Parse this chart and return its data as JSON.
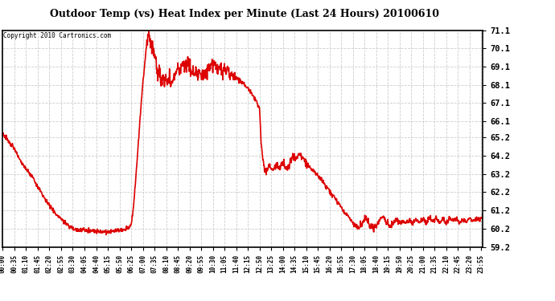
{
  "title": "Outdoor Temp (vs) Heat Index per Minute (Last 24 Hours) 20100610",
  "copyright": "Copyright 2010 Cartronics.com",
  "line_color": "#dd0000",
  "background_color": "#ffffff",
  "grid_color": "#cccccc",
  "yticks": [
    59.2,
    60.2,
    61.2,
    62.2,
    63.2,
    64.2,
    65.2,
    66.1,
    67.1,
    68.1,
    69.1,
    70.1,
    71.1
  ],
  "ylim": [
    59.2,
    71.1
  ],
  "xtick_labels": [
    "00:00",
    "00:35",
    "01:10",
    "01:45",
    "02:20",
    "02:55",
    "03:30",
    "04:05",
    "04:40",
    "05:15",
    "05:50",
    "06:25",
    "07:00",
    "07:35",
    "08:10",
    "08:45",
    "09:20",
    "09:55",
    "10:30",
    "11:05",
    "11:40",
    "12:15",
    "12:50",
    "13:25",
    "14:00",
    "14:35",
    "15:10",
    "15:45",
    "16:20",
    "16:55",
    "17:30",
    "18:05",
    "18:40",
    "19:15",
    "19:50",
    "20:25",
    "21:00",
    "21:35",
    "22:10",
    "22:45",
    "23:20",
    "23:55"
  ],
  "key_points": [
    [
      0,
      65.4
    ],
    [
      10,
      65.2
    ],
    [
      20,
      64.9
    ],
    [
      35,
      64.6
    ],
    [
      50,
      64.0
    ],
    [
      70,
      63.5
    ],
    [
      90,
      63.0
    ],
    [
      105,
      62.5
    ],
    [
      120,
      62.0
    ],
    [
      140,
      61.5
    ],
    [
      160,
      61.0
    ],
    [
      175,
      60.7
    ],
    [
      195,
      60.4
    ],
    [
      210,
      60.2
    ],
    [
      230,
      60.1
    ],
    [
      245,
      60.1
    ],
    [
      260,
      60.1
    ],
    [
      280,
      60.05
    ],
    [
      300,
      60.05
    ],
    [
      315,
      60.05
    ],
    [
      330,
      60.05
    ],
    [
      350,
      60.1
    ],
    [
      360,
      60.1
    ],
    [
      370,
      60.2
    ],
    [
      380,
      60.3
    ],
    [
      385,
      60.5
    ],
    [
      390,
      61.0
    ],
    [
      395,
      62.0
    ],
    [
      400,
      63.2
    ],
    [
      405,
      64.5
    ],
    [
      410,
      65.8
    ],
    [
      415,
      67.0
    ],
    [
      418,
      67.8
    ],
    [
      421,
      68.3
    ],
    [
      424,
      68.9
    ],
    [
      427,
      69.5
    ],
    [
      430,
      70.0
    ],
    [
      433,
      70.5
    ],
    [
      436,
      70.8
    ],
    [
      439,
      71.0
    ],
    [
      441,
      70.6
    ],
    [
      443,
      70.2
    ],
    [
      445,
      70.5
    ],
    [
      447,
      70.0
    ],
    [
      449,
      70.3
    ],
    [
      451,
      69.8
    ],
    [
      453,
      70.0
    ],
    [
      455,
      69.5
    ],
    [
      458,
      69.7
    ],
    [
      462,
      69.0
    ],
    [
      465,
      68.6
    ],
    [
      470,
      68.8
    ],
    [
      475,
      68.3
    ],
    [
      480,
      68.6
    ],
    [
      485,
      68.2
    ],
    [
      490,
      68.5
    ],
    [
      495,
      68.1
    ],
    [
      500,
      68.4
    ],
    [
      505,
      68.0
    ],
    [
      510,
      68.3
    ],
    [
      515,
      68.7
    ],
    [
      520,
      68.9
    ],
    [
      525,
      69.1
    ],
    [
      530,
      68.8
    ],
    [
      535,
      69.2
    ],
    [
      540,
      69.4
    ],
    [
      545,
      69.1
    ],
    [
      548,
      69.4
    ],
    [
      551,
      69.1
    ],
    [
      555,
      69.3
    ],
    [
      560,
      69.0
    ],
    [
      565,
      68.8
    ],
    [
      570,
      68.9
    ],
    [
      575,
      68.7
    ],
    [
      580,
      68.8
    ],
    [
      585,
      68.6
    ],
    [
      590,
      68.8
    ],
    [
      595,
      68.5
    ],
    [
      600,
      68.7
    ],
    [
      605,
      68.5
    ],
    [
      610,
      68.7
    ],
    [
      615,
      68.9
    ],
    [
      620,
      69.1
    ],
    [
      625,
      69.3
    ],
    [
      630,
      69.1
    ],
    [
      635,
      69.3
    ],
    [
      640,
      69.0
    ],
    [
      645,
      69.2
    ],
    [
      650,
      68.9
    ],
    [
      655,
      69.1
    ],
    [
      660,
      68.8
    ],
    [
      665,
      69.0
    ],
    [
      670,
      68.7
    ],
    [
      675,
      68.9
    ],
    [
      680,
      68.6
    ],
    [
      685,
      68.8
    ],
    [
      690,
      68.5
    ],
    [
      695,
      68.7
    ],
    [
      700,
      68.5
    ],
    [
      710,
      68.3
    ],
    [
      720,
      68.2
    ],
    [
      730,
      68.0
    ],
    [
      740,
      67.8
    ],
    [
      750,
      67.5
    ],
    [
      760,
      67.2
    ],
    [
      770,
      66.8
    ],
    [
      775,
      65.0
    ],
    [
      780,
      64.0
    ],
    [
      785,
      63.5
    ],
    [
      790,
      63.3
    ],
    [
      800,
      63.6
    ],
    [
      810,
      63.4
    ],
    [
      820,
      63.7
    ],
    [
      830,
      63.5
    ],
    [
      840,
      63.8
    ],
    [
      850,
      63.5
    ],
    [
      860,
      63.7
    ],
    [
      870,
      64.2
    ],
    [
      880,
      64.0
    ],
    [
      890,
      64.3
    ],
    [
      900,
      64.1
    ],
    [
      910,
      63.8
    ],
    [
      920,
      63.6
    ],
    [
      930,
      63.4
    ],
    [
      940,
      63.2
    ],
    [
      950,
      63.0
    ],
    [
      960,
      62.8
    ],
    [
      970,
      62.5
    ],
    [
      980,
      62.3
    ],
    [
      990,
      62.0
    ],
    [
      1000,
      61.8
    ],
    [
      1010,
      61.5
    ],
    [
      1020,
      61.2
    ],
    [
      1030,
      61.0
    ],
    [
      1040,
      60.8
    ],
    [
      1050,
      60.5
    ],
    [
      1060,
      60.3
    ],
    [
      1070,
      60.2
    ],
    [
      1080,
      60.5
    ],
    [
      1090,
      60.8
    ],
    [
      1100,
      60.4
    ],
    [
      1110,
      60.2
    ],
    [
      1120,
      60.3
    ],
    [
      1130,
      60.6
    ],
    [
      1140,
      60.9
    ],
    [
      1150,
      60.5
    ],
    [
      1160,
      60.3
    ],
    [
      1170,
      60.5
    ],
    [
      1180,
      60.7
    ],
    [
      1190,
      60.5
    ],
    [
      1200,
      60.6
    ],
    [
      1210,
      60.5
    ],
    [
      1220,
      60.7
    ],
    [
      1230,
      60.5
    ],
    [
      1240,
      60.7
    ],
    [
      1250,
      60.5
    ],
    [
      1260,
      60.7
    ],
    [
      1270,
      60.5
    ],
    [
      1280,
      60.8
    ],
    [
      1290,
      60.6
    ],
    [
      1300,
      60.8
    ],
    [
      1310,
      60.5
    ],
    [
      1320,
      60.7
    ],
    [
      1330,
      60.5
    ],
    [
      1340,
      60.8
    ],
    [
      1350,
      60.6
    ],
    [
      1360,
      60.8
    ],
    [
      1370,
      60.5
    ],
    [
      1380,
      60.7
    ],
    [
      1390,
      60.5
    ],
    [
      1400,
      60.8
    ],
    [
      1410,
      60.6
    ],
    [
      1420,
      60.8
    ],
    [
      1430,
      60.7
    ],
    [
      1440,
      60.8
    ]
  ]
}
